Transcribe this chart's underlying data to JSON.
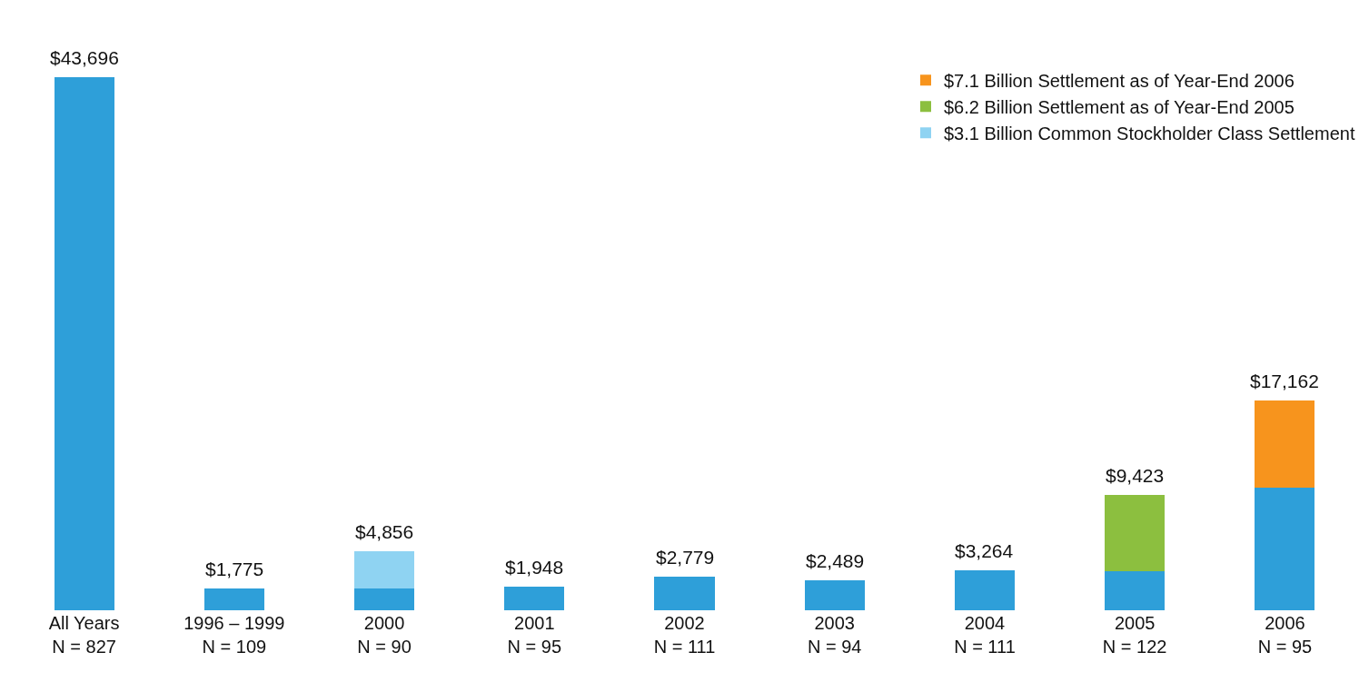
{
  "chart_data": {
    "type": "bar",
    "stacked": true,
    "categories": [
      "All Years\nN = 827",
      "1996 – 1999\nN = 109",
      "2000\nN = 90",
      "2001\nN = 95",
      "2002\nN = 111",
      "2003\nN = 94",
      "2004\nN = 111",
      "2005\nN = 122",
      "2006\nN = 95"
    ],
    "series": [
      {
        "color": "#2e9fd9",
        "values": [
          43696,
          1775,
          1756,
          1948,
          2779,
          2489,
          3264,
          3223,
          10062
        ],
        "value_labels": [
          "$43,696",
          "$1,775",
          null,
          "$1,948",
          "$2,779",
          "$2,489",
          "$3,264",
          null,
          null
        ]
      },
      {
        "name": "$3.1 Billion Common Stockholder Class Settlement",
        "color": "#8fd3f2",
        "values": [
          null,
          null,
          3100,
          null,
          null,
          null,
          null,
          null,
          null
        ]
      },
      {
        "name": "$6.2 Billion Settlement as of Year-End 2005",
        "color": "#8cbf3f",
        "values": [
          null,
          null,
          null,
          null,
          null,
          null,
          null,
          6200,
          null
        ]
      },
      {
        "name": "$7.1 Billion Settlement as of Year-End 2006",
        "color": "#f7941d",
        "values": [
          null,
          null,
          null,
          null,
          null,
          null,
          null,
          null,
          7100
        ]
      }
    ],
    "totals": [
      null,
      null,
      "$4,856",
      null,
      null,
      null,
      null,
      "$9,423",
      "$17,162"
    ],
    "legend": "top right"
  }
}
